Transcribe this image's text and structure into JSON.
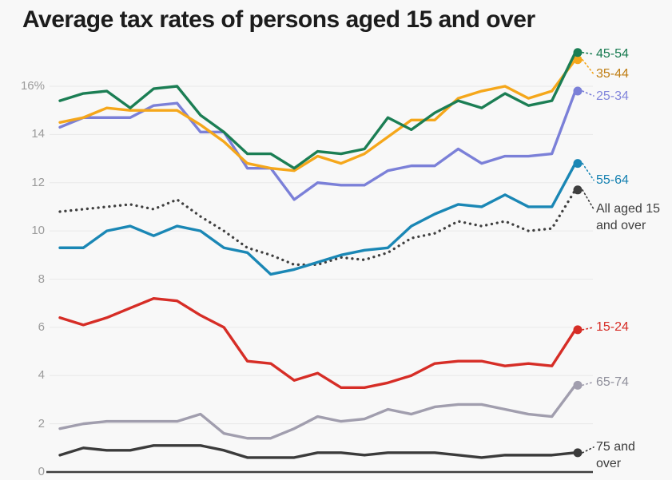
{
  "title": "Average tax rates of persons aged 15 and over",
  "colors": {
    "background": "#f8f8f8",
    "title": "#1c1c1c",
    "grid": "#e9e9e9",
    "axis": "#3d3d3d",
    "tick_text": "#9b9b9b"
  },
  "y_axis": {
    "tick_values": [
      0,
      2,
      4,
      6,
      8,
      10,
      12,
      14,
      16
    ],
    "tick_labels": [
      "0",
      "2",
      "4",
      "6",
      "8",
      "10",
      "12",
      "14",
      "16%"
    ]
  },
  "chart_data": {
    "type": "line",
    "title": "Average tax rates of persons aged 15 and over",
    "xlabel": "",
    "ylabel": "",
    "ylim": [
      0,
      17.5
    ],
    "grid": true,
    "legend_position": "right-edge-labels",
    "x_count": 23,
    "series": [
      {
        "name": "65-74",
        "label_lines": [
          "65-74"
        ],
        "color": "#a19eae",
        "label_color": "#90909c",
        "dash": "solid",
        "values": [
          1.8,
          2.0,
          2.1,
          2.1,
          2.1,
          2.1,
          2.4,
          1.6,
          1.4,
          1.4,
          1.8,
          2.3,
          2.1,
          2.2,
          2.6,
          2.4,
          2.7,
          2.8,
          2.8,
          2.6,
          2.4,
          2.3,
          3.6
        ]
      },
      {
        "name": "75 and over",
        "label_lines": [
          "75 and",
          "over"
        ],
        "color": "#3b3b3b",
        "label_color": "#3b3b3b",
        "dash": "solid",
        "values": [
          0.7,
          1.0,
          0.9,
          0.9,
          1.1,
          1.1,
          1.1,
          0.9,
          0.6,
          0.6,
          0.6,
          0.8,
          0.8,
          0.7,
          0.8,
          0.8,
          0.8,
          0.7,
          0.6,
          0.7,
          0.7,
          0.7,
          0.8
        ]
      },
      {
        "name": "15-24",
        "label_lines": [
          "15-24"
        ],
        "color": "#d62d26",
        "label_color": "#d62d26",
        "dash": "solid",
        "values": [
          6.4,
          6.1,
          6.4,
          6.8,
          7.2,
          7.1,
          6.5,
          6.0,
          4.6,
          4.5,
          3.8,
          4.1,
          3.5,
          3.5,
          3.7,
          4.0,
          4.5,
          4.6,
          4.6,
          4.4,
          4.5,
          4.4,
          5.9
        ]
      },
      {
        "name": "All aged 15 and over",
        "label_lines": [
          "All aged 15",
          "and over"
        ],
        "color": "#3f3f3f",
        "label_color": "#3f3f3f",
        "dash": "dotted",
        "values": [
          10.8,
          10.9,
          11.0,
          11.1,
          10.9,
          11.3,
          10.6,
          10.0,
          9.3,
          9.0,
          8.6,
          8.6,
          8.9,
          8.8,
          9.1,
          9.7,
          9.9,
          10.4,
          10.2,
          10.4,
          10.0,
          10.1,
          11.7
        ]
      },
      {
        "name": "55-64",
        "label_lines": [
          "55-64"
        ],
        "color": "#1a87b5",
        "label_color": "#1581b1",
        "dash": "solid",
        "values": [
          9.3,
          9.3,
          10.0,
          10.2,
          9.8,
          10.2,
          10.0,
          9.3,
          9.1,
          8.2,
          8.4,
          8.7,
          9.0,
          9.2,
          9.3,
          10.2,
          10.7,
          11.1,
          11.0,
          11.5,
          11.0,
          11.0,
          12.8
        ]
      },
      {
        "name": "25-34",
        "label_lines": [
          "25-34"
        ],
        "color": "#7b80d8",
        "label_color": "#8286dc",
        "dash": "solid",
        "values": [
          14.3,
          14.7,
          14.7,
          14.7,
          15.2,
          15.3,
          14.1,
          14.1,
          12.6,
          12.6,
          11.3,
          12.0,
          11.9,
          11.9,
          12.5,
          12.7,
          12.7,
          13.4,
          12.8,
          13.1,
          13.1,
          13.2,
          15.8
        ]
      },
      {
        "name": "35-44",
        "label_lines": [
          "35-44"
        ],
        "color": "#f5a71b",
        "label_color": "#bf7d12",
        "dash": "solid",
        "values": [
          14.5,
          14.7,
          15.1,
          15.0,
          15.0,
          15.0,
          14.4,
          13.7,
          12.8,
          12.6,
          12.5,
          13.1,
          12.8,
          13.2,
          13.9,
          14.6,
          14.6,
          15.5,
          15.8,
          16.0,
          15.5,
          15.8,
          17.1
        ]
      },
      {
        "name": "45-54",
        "label_lines": [
          "45-54"
        ],
        "color": "#1b7e54",
        "label_color": "#177a50",
        "dash": "solid",
        "values": [
          15.4,
          15.7,
          15.8,
          15.1,
          15.9,
          16.0,
          14.8,
          14.1,
          13.2,
          13.2,
          12.6,
          13.3,
          13.2,
          13.4,
          14.7,
          14.2,
          14.9,
          15.4,
          15.1,
          15.7,
          15.2,
          15.4,
          17.4
        ]
      }
    ]
  }
}
